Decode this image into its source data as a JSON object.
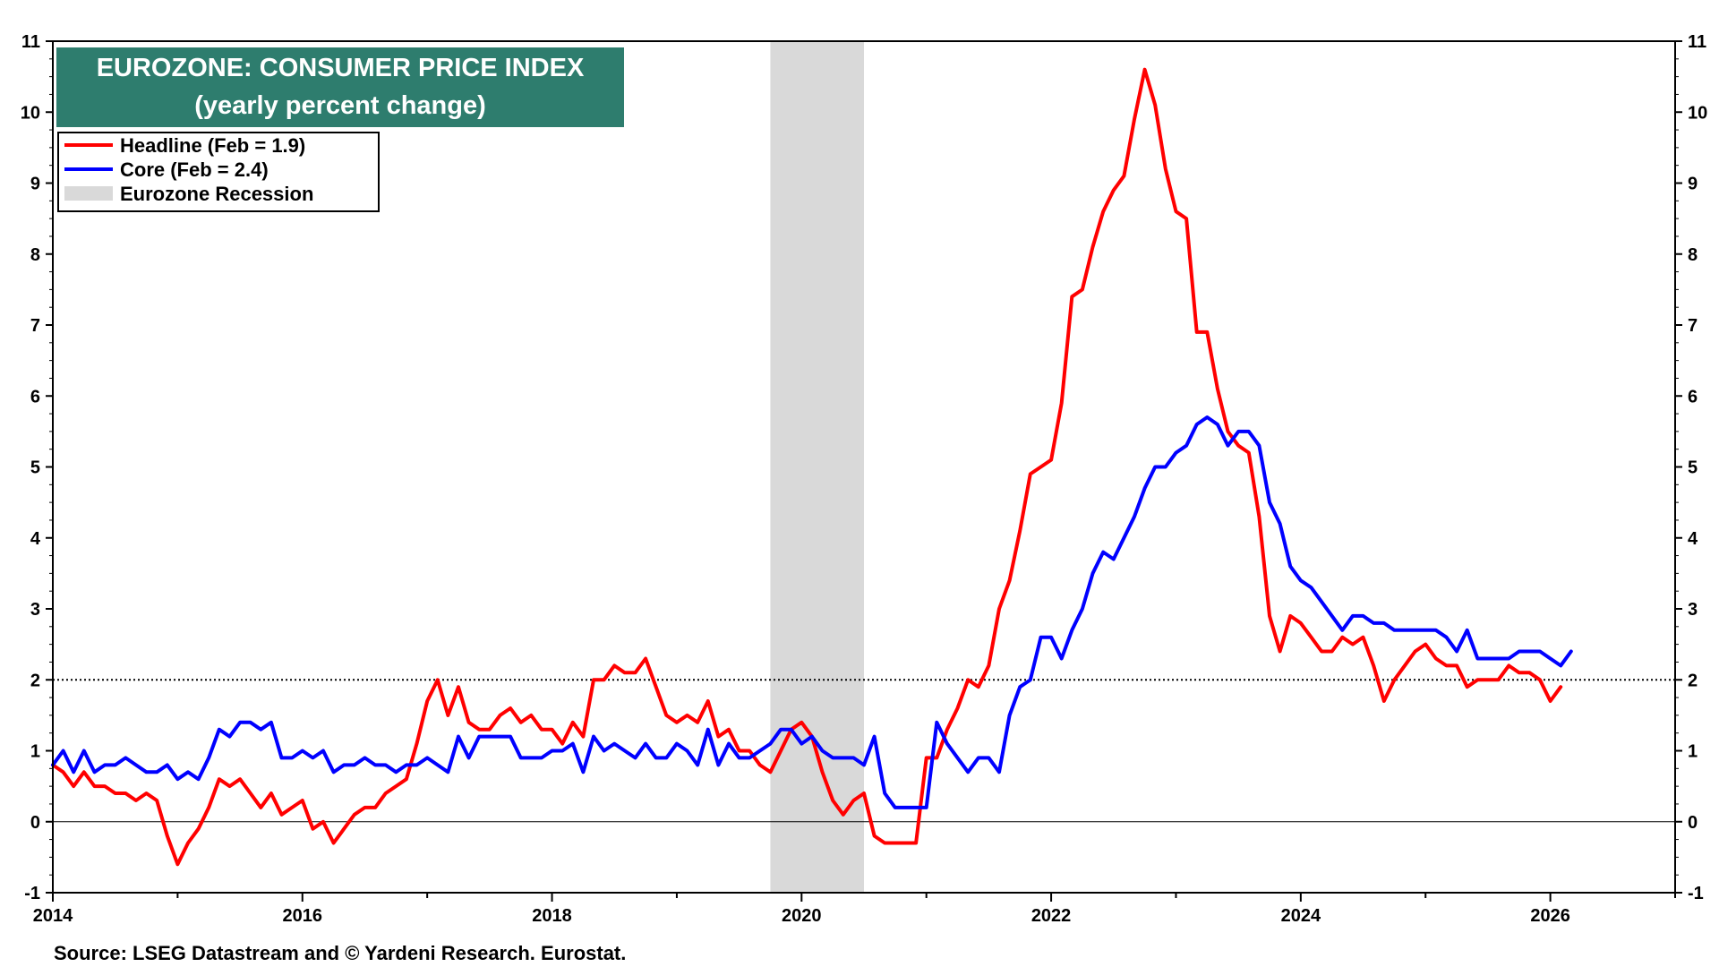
{
  "chart_data": {
    "type": "line",
    "title": "EUROZONE: CONSUMER PRICE INDEX",
    "subtitle": "(yearly percent change)",
    "source": "Source: LSEG Datastream and © Yardeni Research. Eurostat.",
    "xlim": [
      2014,
      2027
    ],
    "ylim": [
      -1,
      11
    ],
    "x_ticks": [
      2014,
      2016,
      2018,
      2020,
      2022,
      2024,
      2026
    ],
    "x_tick_labels": [
      "2014",
      "2016",
      "2018",
      "2020",
      "2022",
      "2024",
      "2026"
    ],
    "y_ticks": [
      -1,
      0,
      1,
      2,
      3,
      4,
      5,
      6,
      7,
      8,
      9,
      10,
      11
    ],
    "y_tick_labels": [
      "-1",
      "0",
      "1",
      "2",
      "3",
      "4",
      "5",
      "6",
      "7",
      "8",
      "9",
      "10",
      "11"
    ],
    "reference_lines": [
      {
        "y": 0,
        "style": "solid"
      },
      {
        "y": 2,
        "style": "dotted"
      }
    ],
    "recession": {
      "label": "Eurozone Recession",
      "start": 2019.75,
      "end": 2020.5,
      "color": "#d9d9d9"
    },
    "series": [
      {
        "name": "Headline (Feb = 1.9)",
        "color": "#ff0000",
        "start": 2014.0,
        "step_months": 1,
        "values": [
          0.8,
          0.7,
          0.5,
          0.7,
          0.5,
          0.5,
          0.4,
          0.4,
          0.3,
          0.4,
          0.3,
          -0.2,
          -0.6,
          -0.3,
          -0.1,
          0.2,
          0.6,
          0.5,
          0.6,
          0.4,
          0.2,
          0.4,
          0.1,
          0.2,
          0.3,
          -0.1,
          0.0,
          -0.3,
          -0.1,
          0.1,
          0.2,
          0.2,
          0.4,
          0.5,
          0.6,
          1.1,
          1.7,
          2.0,
          1.5,
          1.9,
          1.4,
          1.3,
          1.3,
          1.5,
          1.6,
          1.4,
          1.5,
          1.3,
          1.3,
          1.1,
          1.4,
          1.2,
          2.0,
          2.0,
          2.2,
          2.1,
          2.1,
          2.3,
          1.9,
          1.5,
          1.4,
          1.5,
          1.4,
          1.7,
          1.2,
          1.3,
          1.0,
          1.0,
          0.8,
          0.7,
          1.0,
          1.3,
          1.4,
          1.2,
          0.7,
          0.3,
          0.1,
          0.3,
          0.4,
          -0.2,
          -0.3,
          -0.3,
          -0.3,
          -0.3,
          0.9,
          0.9,
          1.3,
          1.6,
          2.0,
          1.9,
          2.2,
          3.0,
          3.4,
          4.1,
          4.9,
          5.0,
          5.1,
          5.9,
          7.4,
          7.5,
          8.1,
          8.6,
          8.9,
          9.1,
          9.9,
          10.6,
          10.1,
          9.2,
          8.6,
          8.5,
          6.9,
          6.9,
          6.1,
          5.5,
          5.3,
          5.2,
          4.3,
          2.9,
          2.4,
          2.9,
          2.8,
          2.6,
          2.4,
          2.4,
          2.6,
          2.5,
          2.6,
          2.2,
          1.7,
          2.0,
          2.2,
          2.4,
          2.5,
          2.3,
          2.2,
          2.2,
          1.9,
          2.0,
          2.0,
          2.0,
          2.2,
          2.1,
          2.1,
          2.0,
          1.7,
          1.9
        ]
      },
      {
        "name": "Core (Feb = 2.4)",
        "color": "#0000ff",
        "start": 2014.0,
        "step_months": 1,
        "values": [
          0.8,
          1.0,
          0.7,
          1.0,
          0.7,
          0.8,
          0.8,
          0.9,
          0.8,
          0.7,
          0.7,
          0.8,
          0.6,
          0.7,
          0.6,
          0.9,
          1.3,
          1.2,
          1.4,
          1.4,
          1.3,
          1.4,
          0.9,
          0.9,
          1.0,
          0.9,
          1.0,
          0.7,
          0.8,
          0.8,
          0.9,
          0.8,
          0.8,
          0.7,
          0.8,
          0.8,
          0.9,
          0.8,
          0.7,
          1.2,
          0.9,
          1.2,
          1.2,
          1.2,
          1.2,
          0.9,
          0.9,
          0.9,
          1.0,
          1.0,
          1.1,
          0.7,
          1.2,
          1.0,
          1.1,
          1.0,
          0.9,
          1.1,
          0.9,
          0.9,
          1.1,
          1.0,
          0.8,
          1.3,
          0.8,
          1.1,
          0.9,
          0.9,
          1.0,
          1.1,
          1.3,
          1.3,
          1.1,
          1.2,
          1.0,
          0.9,
          0.9,
          0.9,
          0.8,
          1.2,
          0.4,
          0.2,
          0.2,
          0.2,
          0.2,
          1.4,
          1.1,
          0.9,
          0.7,
          0.9,
          0.9,
          0.7,
          1.5,
          1.9,
          2.0,
          2.6,
          2.6,
          2.3,
          2.7,
          3.0,
          3.5,
          3.8,
          3.7,
          4.0,
          4.3,
          4.7,
          5.0,
          5.0,
          5.2,
          5.3,
          5.6,
          5.7,
          5.6,
          5.3,
          5.5,
          5.5,
          5.3,
          4.5,
          4.2,
          3.6,
          3.4,
          3.3,
          3.1,
          2.9,
          2.7,
          2.9,
          2.9,
          2.8,
          2.8,
          2.7,
          2.7,
          2.7,
          2.7,
          2.7,
          2.6,
          2.4,
          2.7,
          2.3,
          2.3,
          2.3,
          2.3,
          2.4,
          2.4,
          2.4,
          2.3,
          2.2,
          2.4
        ]
      }
    ],
    "legend_placement": "top-left"
  }
}
